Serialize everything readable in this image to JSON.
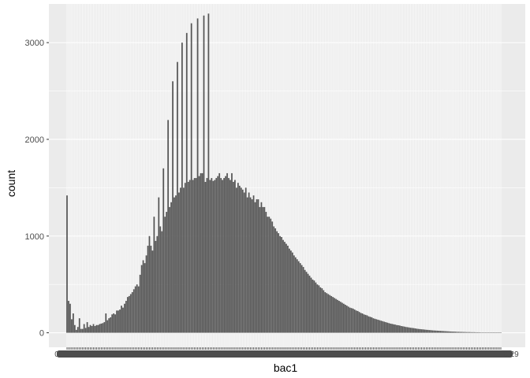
{
  "chart_data": {
    "type": "bar",
    "title": "",
    "xlabel": "bac1",
    "ylabel": "count",
    "ylim": [
      -150,
      3400
    ],
    "yticks": [
      0,
      1000,
      2000,
      3000
    ],
    "ytick_labels": [
      "0",
      "1000",
      "2000",
      "3000"
    ],
    "bar_count": 280,
    "bar_color": "#595959",
    "panel_background": "#EBEBEB",
    "grid": true,
    "legend": "none",
    "x_tick_labels_illegible": true,
    "x_tick_first_label": "0",
    "x_tick_last_label": "0.29",
    "bars": [
      1420,
      330,
      300,
      140,
      200,
      80,
      30,
      60,
      150,
      40,
      40,
      90,
      50,
      110,
      60,
      80,
      70,
      90,
      70,
      80,
      80,
      90,
      95,
      100,
      110,
      200,
      130,
      150,
      160,
      190,
      200,
      190,
      230,
      230,
      240,
      280,
      260,
      300,
      330,
      370,
      380,
      400,
      420,
      450,
      480,
      500,
      480,
      600,
      700,
      750,
      720,
      800,
      900,
      1000,
      900,
      850,
      1200,
      950,
      1000,
      1400,
      1100,
      1050,
      1700,
      1200,
      1250,
      2200,
      1300,
      1350,
      2600,
      1400,
      1420,
      2800,
      1450,
      1500,
      3000,
      1500,
      1550,
      3100,
      1560,
      1580,
      3200,
      1580,
      1600,
      1600,
      3250,
      1620,
      1650,
      1650,
      3280,
      1560,
      1600,
      3300,
      1580,
      1600,
      1570,
      1580,
      1600,
      1620,
      1650,
      1600,
      1580,
      1600,
      1620,
      1650,
      1600,
      1580,
      1650,
      1560,
      1580,
      1500,
      1550,
      1520,
      1500,
      1480,
      1450,
      1500,
      1400,
      1450,
      1400,
      1380,
      1420,
      1350,
      1380,
      1380,
      1300,
      1350,
      1300,
      1300,
      1250,
      1200,
      1200,
      1180,
      1150,
      1100,
      1080,
      1050,
      1030,
      1000,
      990,
      960,
      940,
      920,
      900,
      870,
      850,
      830,
      800,
      780,
      760,
      740,
      720,
      700,
      680,
      650,
      630,
      610,
      590,
      570,
      550,
      540,
      520,
      500,
      490,
      470,
      460,
      440,
      420,
      410,
      400,
      390,
      380,
      370,
      360,
      350,
      340,
      330,
      320,
      310,
      300,
      290,
      280,
      270,
      260,
      255,
      250,
      240,
      230,
      225,
      215,
      205,
      200,
      190,
      185,
      180,
      170,
      165,
      160,
      150,
      145,
      140,
      135,
      130,
      125,
      120,
      115,
      110,
      105,
      100,
      95,
      92,
      88,
      85,
      80,
      78,
      75,
      70,
      67,
      64,
      60,
      58,
      55,
      52,
      50,
      48,
      45,
      42,
      40,
      38,
      36,
      35,
      33,
      31,
      30,
      28,
      27,
      25,
      24,
      23,
      22,
      21,
      20,
      19,
      18,
      17,
      16,
      15,
      14,
      13,
      12,
      12,
      11,
      10,
      10,
      9,
      9,
      8,
      8,
      7,
      7,
      7,
      6,
      6,
      6,
      5,
      5,
      5,
      4,
      4,
      4,
      4,
      3,
      3,
      3,
      3,
      3,
      2,
      2,
      2,
      2,
      2
    ]
  }
}
